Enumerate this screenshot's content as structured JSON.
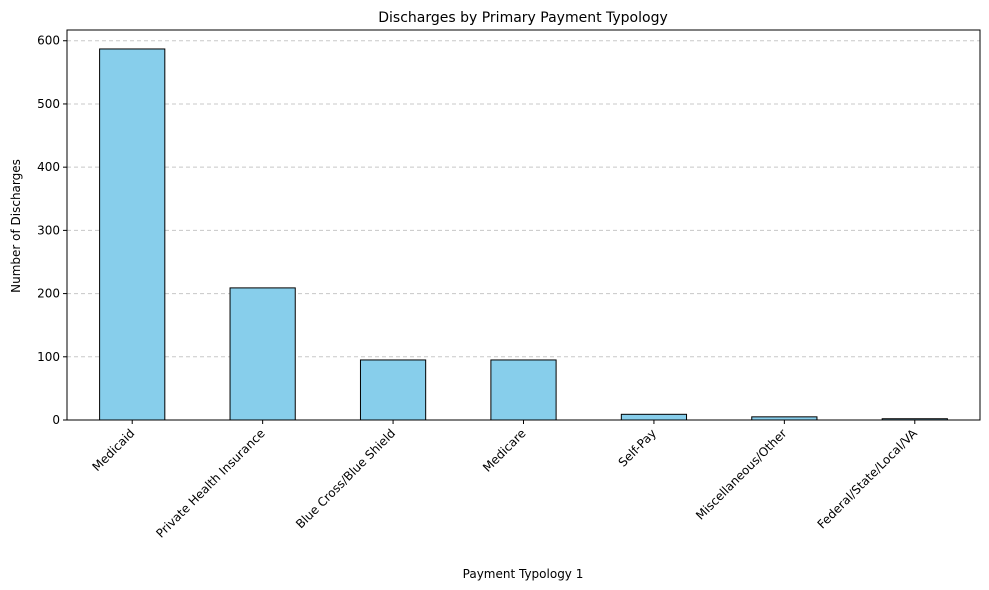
{
  "chart_data": {
    "type": "bar",
    "title": "Discharges by Primary Payment Typology",
    "xlabel": "Payment Typology 1",
    "ylabel": "Number of Discharges",
    "categories": [
      "Medicaid",
      "Private Health Insurance",
      "Blue Cross/Blue Shield",
      "Medicare",
      "Self-Pay",
      "Miscellaneous/Other",
      "Federal/State/Local/VA"
    ],
    "values": [
      587,
      209,
      95,
      95,
      9,
      5,
      2
    ],
    "ylim": [
      0,
      617
    ],
    "yticks": [
      0,
      100,
      200,
      300,
      400,
      500,
      600
    ],
    "grid": "y dashed",
    "legend": "none",
    "bar_color": "#87ceeb",
    "edge_color": "#000000",
    "x_tick_rotation": 45
  }
}
